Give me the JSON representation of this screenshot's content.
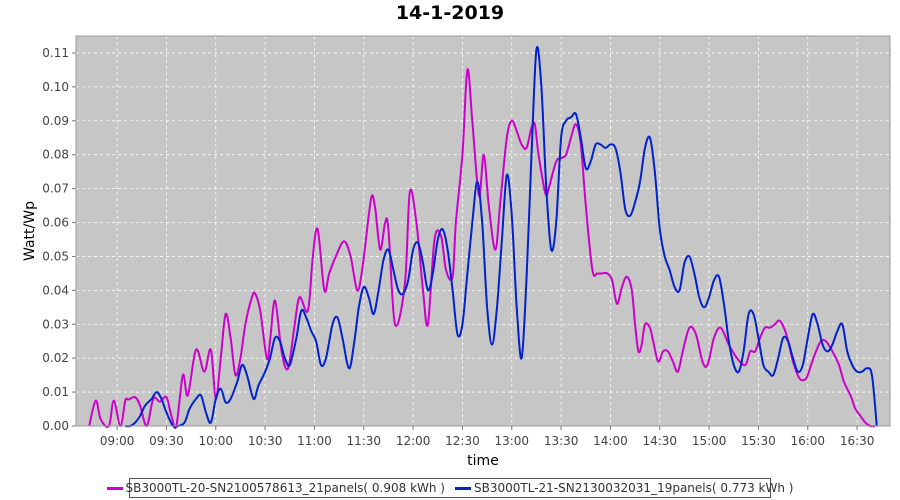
{
  "chart_data": {
    "type": "line",
    "title": "14-1-2019",
    "xlabel": "time",
    "ylabel": "Watt/Wp",
    "xlim": [
      "08:35",
      "16:50"
    ],
    "ylim": [
      0,
      0.115
    ],
    "x_ticks": [
      "09:00",
      "09:30",
      "10:00",
      "10:30",
      "11:00",
      "11:30",
      "12:00",
      "12:30",
      "13:00",
      "13:30",
      "14:00",
      "14:30",
      "15:00",
      "15:30",
      "16:00",
      "16:30"
    ],
    "y_ticks": [
      "0.00",
      "0.01",
      "0.02",
      "0.03",
      "0.04",
      "0.05",
      "0.06",
      "0.07",
      "0.08",
      "0.09",
      "0.10",
      "0.11"
    ],
    "grid": true,
    "legend_position": "bottom",
    "background": "#c6c6c6",
    "series": [
      {
        "name": "SB3000TL-20-SN2100578613_21panels( 0.908 kWh )",
        "color": "#cc00cc",
        "x": [
          "08:43",
          "08:47",
          "08:50",
          "08:55",
          "08:58",
          "09:02",
          "09:05",
          "09:07",
          "09:11",
          "09:14",
          "09:18",
          "09:22",
          "09:26",
          "09:30",
          "09:33",
          "09:36",
          "09:40",
          "09:43",
          "09:48",
          "09:53",
          "09:57",
          "10:00",
          "10:03",
          "10:06",
          "10:09",
          "10:12",
          "10:15",
          "10:18",
          "10:22",
          "10:24",
          "10:27",
          "10:31",
          "10:33",
          "10:36",
          "10:40",
          "10:44",
          "10:48",
          "10:51",
          "10:56",
          "10:59",
          "11:02",
          "11:06",
          "11:09",
          "11:13",
          "11:18",
          "11:22",
          "11:26",
          "11:29",
          "11:33",
          "11:35",
          "11:37",
          "11:40",
          "11:43",
          "11:45",
          "11:49",
          "11:55",
          "11:58",
          "12:02",
          "12:06",
          "12:09",
          "12:13",
          "12:17",
          "12:20",
          "12:24",
          "12:26",
          "12:30",
          "12:33",
          "12:36",
          "12:40",
          "12:43",
          "12:46",
          "12:50",
          "12:53",
          "12:57",
          "13:00",
          "13:03",
          "13:06",
          "13:09",
          "13:12",
          "13:14",
          "13:16",
          "13:19",
          "13:21",
          "13:23",
          "13:27",
          "13:30",
          "13:33",
          "13:36",
          "13:39",
          "13:42",
          "13:45",
          "13:49",
          "13:52",
          "13:55",
          "13:58",
          "14:01",
          "14:04",
          "14:07",
          "14:10",
          "14:13",
          "14:15",
          "14:17",
          "14:19",
          "14:21",
          "14:24",
          "14:26",
          "14:29",
          "14:32",
          "14:35",
          "14:38",
          "14:41",
          "14:44",
          "14:48",
          "14:52",
          "14:56",
          "14:59",
          "15:03",
          "15:07",
          "15:12",
          "15:17",
          "15:22",
          "15:25",
          "15:28",
          "15:31",
          "15:34",
          "15:37",
          "15:40",
          "15:43",
          "15:47",
          "15:51",
          "15:55",
          "15:59",
          "16:02",
          "16:05",
          "16:08",
          "16:11",
          "16:15",
          "16:19",
          "16:22",
          "16:26",
          "16:29",
          "16:32",
          "16:35",
          "16:38",
          "16:41"
        ],
        "values": [
          0,
          0.0075,
          0.002,
          0,
          0.0075,
          0,
          0.0075,
          0.0078,
          0.0085,
          0.006,
          0,
          0.008,
          0.0072,
          0.0085,
          0.003,
          0,
          0.015,
          0.009,
          0.0225,
          0.016,
          0.0225,
          0.008,
          0.02,
          0.033,
          0.026,
          0.015,
          0.02,
          0.03,
          0.038,
          0.039,
          0.034,
          0.02,
          0.025,
          0.037,
          0.022,
          0.017,
          0.03,
          0.038,
          0.034,
          0.05,
          0.058,
          0.04,
          0.045,
          0.05,
          0.0545,
          0.05,
          0.04,
          0.046,
          0.062,
          0.068,
          0.064,
          0.052,
          0.06,
          0.058,
          0.03,
          0.042,
          0.069,
          0.06,
          0.04,
          0.03,
          0.055,
          0.056,
          0.046,
          0.044,
          0.06,
          0.08,
          0.105,
          0.09,
          0.068,
          0.08,
          0.065,
          0.052,
          0.066,
          0.085,
          0.09,
          0.087,
          0.083,
          0.082,
          0.088,
          0.089,
          0.081,
          0.072,
          0.068,
          0.071,
          0.078,
          0.079,
          0.08,
          0.085,
          0.089,
          0.083,
          0.065,
          0.046,
          0.045,
          0.045,
          0.045,
          0.043,
          0.036,
          0.041,
          0.044,
          0.04,
          0.03,
          0.022,
          0.024,
          0.03,
          0.029,
          0.025,
          0.019,
          0.022,
          0.022,
          0.019,
          0.016,
          0.022,
          0.029,
          0.027,
          0.019,
          0.018,
          0.026,
          0.029,
          0.024,
          0.02,
          0.018,
          0.022,
          0.022,
          0.026,
          0.029,
          0.029,
          0.03,
          0.031,
          0.027,
          0.019,
          0.014,
          0.014,
          0.018,
          0.022,
          0.025,
          0.025,
          0.022,
          0.018,
          0.013,
          0.009,
          0.005,
          0.003,
          0.001,
          0,
          0
        ]
      },
      {
        "name": "SB3000TL-21-SN2130032031_19panels( 0.773 kWh )",
        "color": "#0022cc",
        "x": [
          "09:05",
          "09:08",
          "09:11",
          "09:14",
          "09:17",
          "09:21",
          "09:24",
          "09:27",
          "09:30",
          "09:34",
          "09:37",
          "09:41",
          "09:44",
          "09:48",
          "09:51",
          "09:54",
          "09:57",
          "10:00",
          "10:03",
          "10:06",
          "10:09",
          "10:13",
          "10:16",
          "10:19",
          "10:23",
          "10:26",
          "10:30",
          "10:33",
          "10:36",
          "10:39",
          "10:42",
          "10:45",
          "10:49",
          "10:52",
          "10:55",
          "10:58",
          "11:01",
          "11:04",
          "11:07",
          "11:11",
          "11:14",
          "11:17",
          "11:21",
          "11:24",
          "11:27",
          "11:30",
          "11:33",
          "11:36",
          "11:39",
          "11:42",
          "11:45",
          "11:48",
          "11:51",
          "11:54",
          "11:57",
          "12:00",
          "12:03",
          "12:06",
          "12:09",
          "12:12",
          "12:15",
          "12:18",
          "12:21",
          "12:24",
          "12:27",
          "12:30",
          "12:33",
          "12:36",
          "12:39",
          "12:42",
          "12:45",
          "12:48",
          "12:51",
          "12:54",
          "12:57",
          "13:00",
          "13:03",
          "13:06",
          "13:09",
          "13:12",
          "13:15",
          "13:18",
          "13:21",
          "13:24",
          "13:27",
          "13:30",
          "13:33",
          "13:36",
          "13:39",
          "13:42",
          "13:45",
          "13:48",
          "13:51",
          "13:54",
          "13:57",
          "14:00",
          "14:03",
          "14:06",
          "14:09",
          "14:12",
          "14:15",
          "14:18",
          "14:21",
          "14:24",
          "14:27",
          "14:30",
          "14:33",
          "14:36",
          "14:39",
          "14:42",
          "14:45",
          "14:48",
          "14:51",
          "14:54",
          "14:57",
          "15:00",
          "15:03",
          "15:06",
          "15:09",
          "15:12",
          "15:15",
          "15:18",
          "15:21",
          "15:24",
          "15:27",
          "15:30",
          "15:33",
          "15:36",
          "15:39",
          "15:42",
          "15:45",
          "15:48",
          "15:51",
          "15:54",
          "15:57",
          "16:00",
          "16:03",
          "16:06",
          "16:09",
          "16:12",
          "16:15",
          "16:18",
          "16:21",
          "16:24",
          "16:27",
          "16:30",
          "16:33",
          "16:36",
          "16:39",
          "16:42"
        ],
        "values": [
          0,
          0,
          0.001,
          0.003,
          0.006,
          0.008,
          0.01,
          0.008,
          0.004,
          0,
          0,
          0.001,
          0.005,
          0.008,
          0.009,
          0.004,
          0.001,
          0.008,
          0.011,
          0.007,
          0.008,
          0.013,
          0.018,
          0.015,
          0.008,
          0.012,
          0.016,
          0.02,
          0.026,
          0.025,
          0.02,
          0.018,
          0.026,
          0.034,
          0.032,
          0.028,
          0.025,
          0.018,
          0.02,
          0.03,
          0.032,
          0.026,
          0.017,
          0.024,
          0.035,
          0.041,
          0.038,
          0.033,
          0.04,
          0.049,
          0.052,
          0.046,
          0.04,
          0.039,
          0.043,
          0.052,
          0.054,
          0.048,
          0.04,
          0.045,
          0.055,
          0.058,
          0.052,
          0.04,
          0.027,
          0.03,
          0.045,
          0.06,
          0.072,
          0.06,
          0.035,
          0.024,
          0.035,
          0.055,
          0.074,
          0.062,
          0.035,
          0.02,
          0.044,
          0.08,
          0.111,
          0.1,
          0.07,
          0.052,
          0.06,
          0.085,
          0.09,
          0.091,
          0.092,
          0.085,
          0.076,
          0.078,
          0.083,
          0.083,
          0.082,
          0.083,
          0.082,
          0.075,
          0.064,
          0.062,
          0.066,
          0.072,
          0.082,
          0.085,
          0.075,
          0.058,
          0.05,
          0.046,
          0.041,
          0.04,
          0.048,
          0.05,
          0.045,
          0.038,
          0.035,
          0.038,
          0.043,
          0.044,
          0.036,
          0.025,
          0.018,
          0.016,
          0.022,
          0.033,
          0.033,
          0.026,
          0.018,
          0.016,
          0.015,
          0.02,
          0.026,
          0.025,
          0.02,
          0.016,
          0.018,
          0.026,
          0.033,
          0.03,
          0.024,
          0.022,
          0.024,
          0.028,
          0.03,
          0.022,
          0.018,
          0.016,
          0.016,
          0.017,
          0.015,
          0
        ]
      }
    ]
  }
}
